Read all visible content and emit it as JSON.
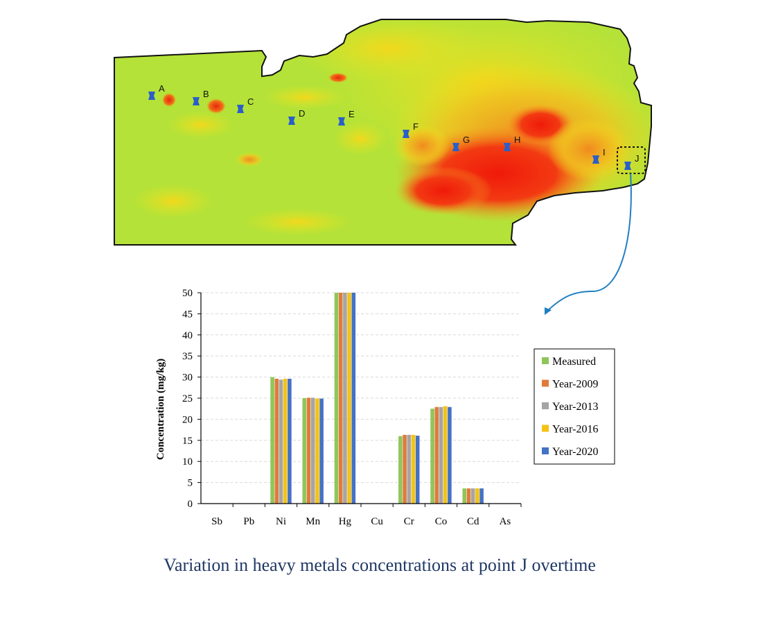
{
  "map": {
    "points": [
      "A",
      "B",
      "C",
      "D",
      "E",
      "F",
      "G",
      "H",
      "I",
      "J"
    ],
    "colors": {
      "low": "#b8e63a",
      "mid": "#f2e01c",
      "high": "#f03010",
      "marker": "#2b5fc8",
      "arrow": "#1f7fbf"
    }
  },
  "chart_data": {
    "type": "bar",
    "categories": [
      "Sb",
      "Pb",
      "Ni",
      "Mn",
      "Hg",
      "Cu",
      "Cr",
      "Co",
      "Cd",
      "As"
    ],
    "ylabel": "Concentration  (mg/kg)",
    "ylim": [
      0,
      50
    ],
    "yticks": [
      0,
      5,
      10,
      15,
      20,
      25,
      30,
      35,
      40,
      45,
      50
    ],
    "grid": true,
    "legend_position": "right",
    "series": [
      {
        "name": "Measured",
        "color": "#8fc65a",
        "values": [
          0,
          0,
          30.0,
          25.0,
          50,
          0,
          16.0,
          22.5,
          3.6,
          0
        ]
      },
      {
        "name": "Year-2009",
        "color": "#e07b3c",
        "values": [
          0,
          0,
          29.6,
          25.1,
          50,
          0,
          16.3,
          22.9,
          3.6,
          0
        ]
      },
      {
        "name": "Year-2013",
        "color": "#a5a5a5",
        "values": [
          0,
          0,
          29.4,
          25.1,
          50,
          0,
          16.3,
          22.9,
          3.6,
          0
        ]
      },
      {
        "name": "Year-2016",
        "color": "#f5c216",
        "values": [
          0,
          0,
          29.6,
          24.9,
          50,
          0,
          16.3,
          23.1,
          3.6,
          0
        ]
      },
      {
        "name": "Year-2020",
        "color": "#4472c4",
        "values": [
          0,
          0,
          29.6,
          24.9,
          50,
          0,
          16.1,
          22.9,
          3.6,
          0
        ]
      }
    ]
  },
  "caption": "Variation in heavy metals concentrations at point J overtime"
}
